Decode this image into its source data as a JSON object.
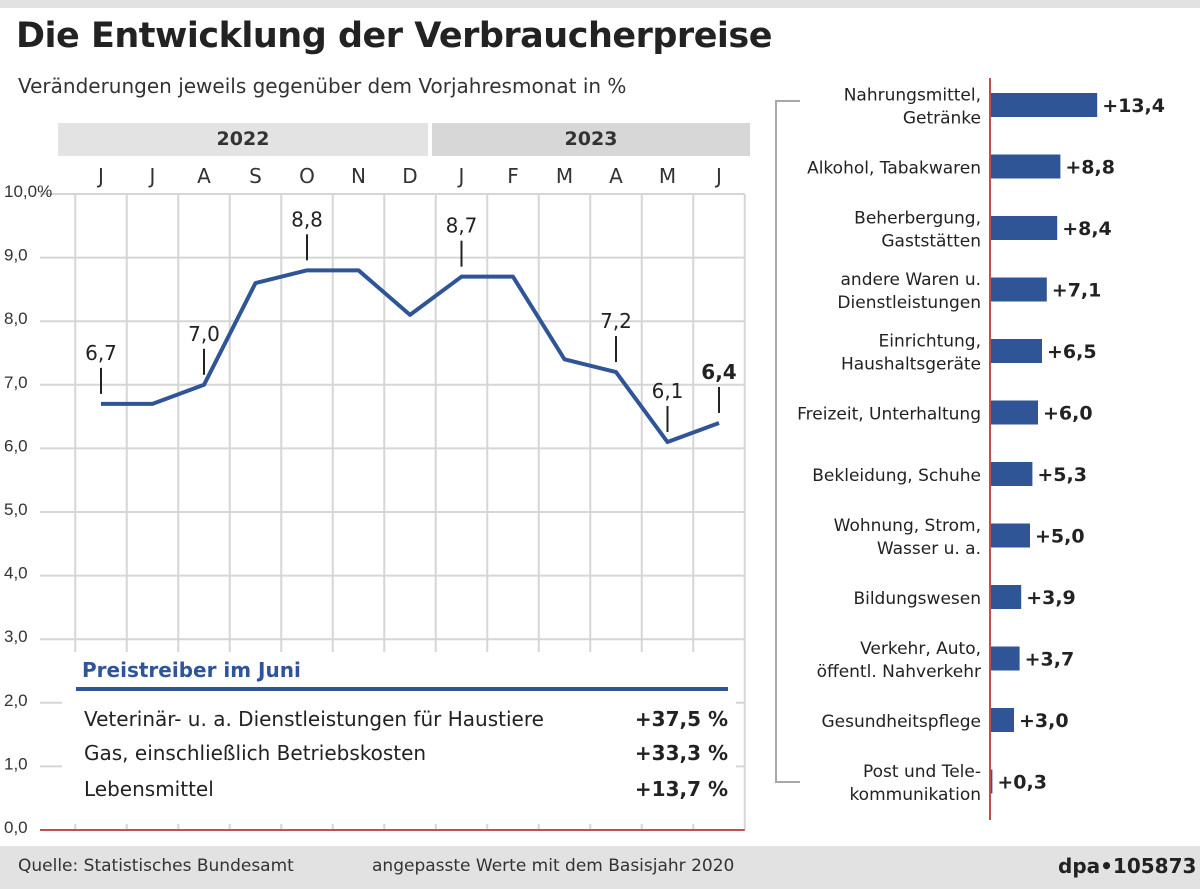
{
  "title": "Die Entwicklung der Verbraucherpreise",
  "subtitle": "Veränderungen jeweils gegenüber dem Vorjahresmonat in %",
  "years": [
    "2022",
    "2023"
  ],
  "drivers": {
    "title": "Preistreiber im Juni",
    "items": [
      {
        "label": "Veterinär- u. a. Dienstleistungen für Haustiere",
        "value": "+37,5 %"
      },
      {
        "label": "Gas, einschließlich Betriebskosten",
        "value": "+33,3 %"
      },
      {
        "label": "Lebensmittel",
        "value": "+13,7 %"
      }
    ]
  },
  "footer": {
    "source": "Quelle: Statistisches Bundesamt",
    "note": "angepasste Werte mit dem Basisjahr 2020",
    "id": "dpa•105873"
  },
  "colors": {
    "line": "#2f5597",
    "bar": "#2f5597",
    "baseline": "#c0504d",
    "grid": "#d6d6d6",
    "band": "#e3e3e3",
    "footer": "#e2e2e2"
  },
  "chart_data": [
    {
      "type": "line",
      "categories": [
        "J",
        "J",
        "A",
        "S",
        "O",
        "N",
        "D",
        "J",
        "F",
        "M",
        "A",
        "M",
        "J"
      ],
      "series": [
        {
          "values": [
            6.7,
            6.7,
            7.0,
            8.6,
            8.8,
            8.8,
            8.1,
            8.7,
            8.7,
            7.4,
            7.2,
            6.1,
            6.4
          ]
        }
      ],
      "labels": [
        {
          "index": 0,
          "text": "6,7",
          "bold": false
        },
        {
          "index": 2,
          "text": "7,0",
          "bold": false
        },
        {
          "index": 4,
          "text": "8,8",
          "bold": false
        },
        {
          "index": 7,
          "text": "8,7",
          "bold": false
        },
        {
          "index": 10,
          "text": "7,2",
          "bold": false
        },
        {
          "index": 11,
          "text": "6,1",
          "bold": false
        },
        {
          "index": 12,
          "text": "6,4",
          "bold": true
        }
      ],
      "yticks": [
        "0,0",
        "1,0",
        "2,0",
        "3,0",
        "4,0",
        "5,0",
        "6,0",
        "7,0",
        "8,0",
        "9,0",
        "10,0%"
      ],
      "ylim": [
        0,
        10
      ],
      "grid": true
    },
    {
      "type": "bar",
      "orientation": "horizontal",
      "categories": [
        "Nahrungsmittel,\nGetränke",
        "Alkohol, Tabakwaren",
        "Beherbergung,\nGaststätten",
        "andere Waren u.\nDienstleistungen",
        "Einrichtung,\nHaushaltsgeräte",
        "Freizeit, Unterhaltung",
        "Bekleidung, Schuhe",
        "Wohnung, Strom,\nWasser u. a.",
        "Bildungswesen",
        "Verkehr, Auto,\nöffentl. Nahverkehr",
        "Gesundheitspflege",
        "Post und Tele-\nkommunikation"
      ],
      "values": [
        13.4,
        8.8,
        8.4,
        7.1,
        6.5,
        6.0,
        5.3,
        5.0,
        3.9,
        3.7,
        3.0,
        0.3
      ],
      "value_labels": [
        "+13,4",
        "+8,8",
        "+8,4",
        "+7,1",
        "+6,5",
        "+6,0",
        "+5,3",
        "+5,0",
        "+3,9",
        "+3,7",
        "+3,0",
        "+0,3"
      ]
    }
  ]
}
